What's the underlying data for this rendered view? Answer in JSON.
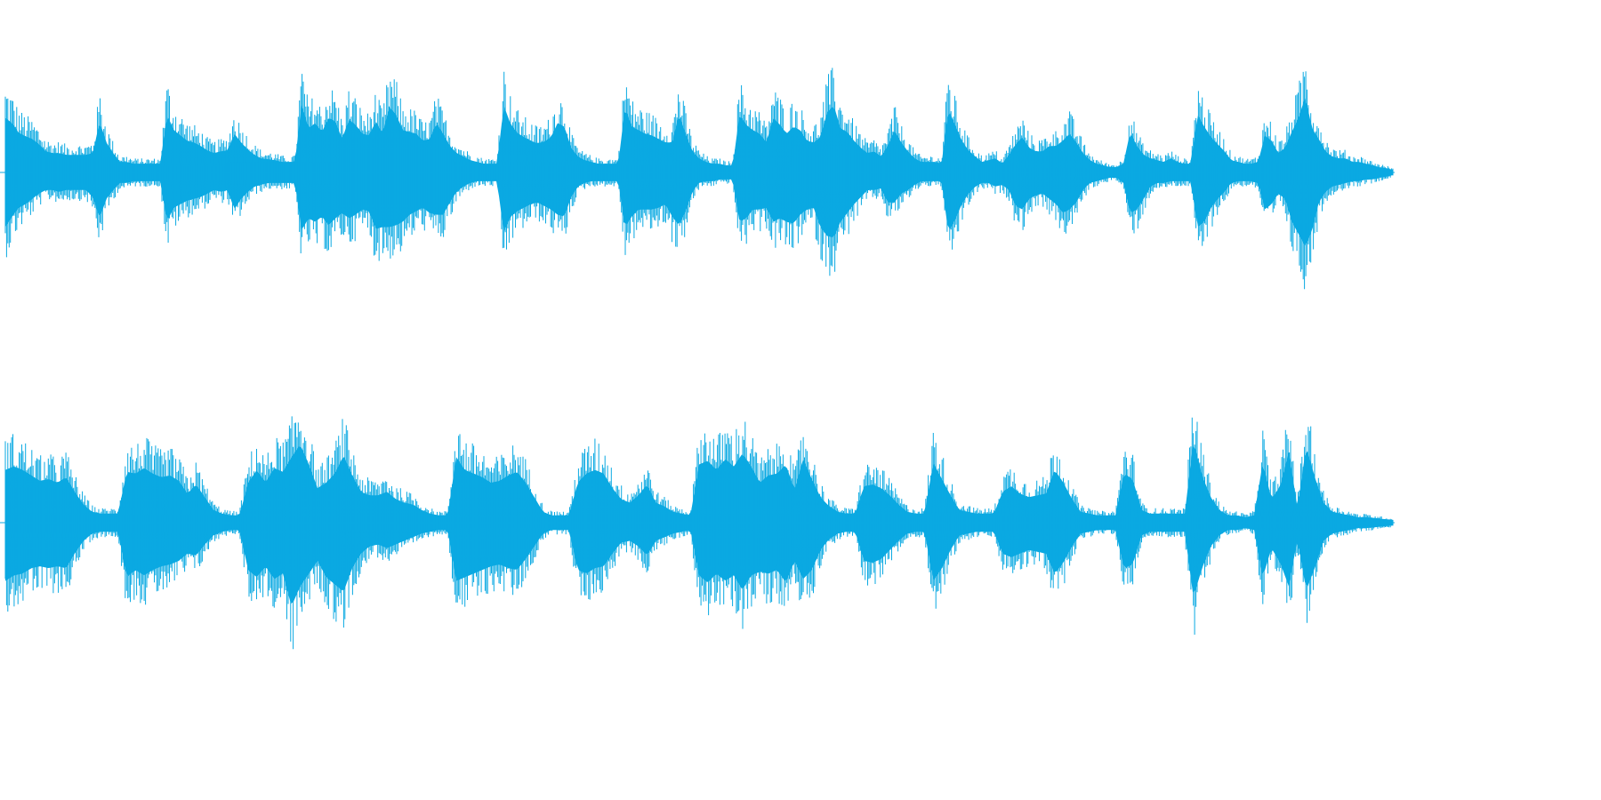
{
  "waveform": {
    "color": "#0aa9e2",
    "background": "#ffffff",
    "channels": [
      {
        "name": "",
        "envelope_top": [
          0.62,
          0.56,
          0.45,
          0.41,
          0.38,
          0.32,
          0.24,
          0.22,
          0.22,
          0.2,
          0.2,
          0.2,
          0.2,
          0.22,
          0.58,
          0.34,
          0.22,
          0.12,
          0.12,
          0.1,
          0.1,
          0.1,
          0.1,
          0.1,
          0.66,
          0.48,
          0.42,
          0.36,
          0.34,
          0.3,
          0.25,
          0.22,
          0.24,
          0.25,
          0.44,
          0.34,
          0.26,
          0.2,
          0.16,
          0.15,
          0.14,
          0.12,
          0.12,
          0.12,
          0.78,
          0.5,
          0.56,
          0.46,
          0.62,
          0.58,
          0.38,
          0.6,
          0.54,
          0.44,
          0.42,
          0.58,
          0.44,
          0.74,
          0.66,
          0.48,
          0.46,
          0.44,
          0.36,
          0.38,
          0.56,
          0.44,
          0.3,
          0.22,
          0.18,
          0.14,
          0.12,
          0.1,
          0.1,
          0.1,
          0.76,
          0.55,
          0.45,
          0.4,
          0.36,
          0.33,
          0.35,
          0.4,
          0.56,
          0.52,
          0.28,
          0.18,
          0.14,
          0.12,
          0.1,
          0.1,
          0.1,
          0.1,
          0.74,
          0.52,
          0.48,
          0.44,
          0.42,
          0.38,
          0.34,
          0.34,
          0.66,
          0.44,
          0.24,
          0.16,
          0.12,
          0.1,
          0.1,
          0.08,
          0.08,
          0.66,
          0.54,
          0.48,
          0.44,
          0.34,
          0.62,
          0.54,
          0.44,
          0.52,
          0.48,
          0.36,
          0.34,
          0.4,
          0.68,
          0.76,
          0.5,
          0.46,
          0.36,
          0.28,
          0.22,
          0.24,
          0.18,
          0.3,
          0.48,
          0.34,
          0.24,
          0.16,
          0.12,
          0.12,
          0.12,
          0.1,
          0.72,
          0.54,
          0.36,
          0.25,
          0.18,
          0.12,
          0.14,
          0.16,
          0.1,
          0.2,
          0.32,
          0.4,
          0.28,
          0.24,
          0.24,
          0.3,
          0.3,
          0.36,
          0.44,
          0.34,
          0.22,
          0.14,
          0.1,
          0.08,
          0.06,
          0.06,
          0.1,
          0.46,
          0.3,
          0.2,
          0.16,
          0.14,
          0.12,
          0.16,
          0.12,
          0.1,
          0.1,
          0.66,
          0.52,
          0.4,
          0.32,
          0.24,
          0.14,
          0.12,
          0.1,
          0.1,
          0.12,
          0.42,
          0.36,
          0.22,
          0.28,
          0.46,
          0.62,
          0.86,
          0.5,
          0.38,
          0.24,
          0.18,
          0.16,
          0.16,
          0.12,
          0.12,
          0.1,
          0.08,
          0.06,
          0.05,
          0.03
        ],
        "envelope_bottom": [
          0.62,
          0.5,
          0.4,
          0.36,
          0.3,
          0.24,
          0.2,
          0.2,
          0.22,
          0.2,
          0.2,
          0.2,
          0.2,
          0.28,
          0.52,
          0.3,
          0.2,
          0.12,
          0.12,
          0.1,
          0.1,
          0.1,
          0.1,
          0.1,
          0.56,
          0.4,
          0.36,
          0.32,
          0.3,
          0.28,
          0.24,
          0.2,
          0.22,
          0.2,
          0.42,
          0.3,
          0.22,
          0.16,
          0.14,
          0.12,
          0.12,
          0.12,
          0.12,
          0.12,
          0.66,
          0.52,
          0.56,
          0.5,
          0.6,
          0.52,
          0.46,
          0.52,
          0.48,
          0.42,
          0.44,
          0.64,
          0.62,
          0.62,
          0.6,
          0.56,
          0.48,
          0.44,
          0.4,
          0.46,
          0.48,
          0.48,
          0.34,
          0.22,
          0.16,
          0.12,
          0.1,
          0.1,
          0.1,
          0.1,
          0.68,
          0.5,
          0.44,
          0.4,
          0.36,
          0.34,
          0.38,
          0.42,
          0.48,
          0.5,
          0.28,
          0.16,
          0.12,
          0.1,
          0.1,
          0.1,
          0.1,
          0.1,
          0.62,
          0.5,
          0.42,
          0.42,
          0.42,
          0.4,
          0.36,
          0.5,
          0.6,
          0.44,
          0.22,
          0.12,
          0.1,
          0.1,
          0.08,
          0.08,
          0.08,
          0.56,
          0.52,
          0.42,
          0.42,
          0.4,
          0.56,
          0.52,
          0.56,
          0.58,
          0.48,
          0.42,
          0.4,
          0.62,
          0.72,
          0.74,
          0.56,
          0.46,
          0.36,
          0.28,
          0.2,
          0.2,
          0.18,
          0.34,
          0.34,
          0.24,
          0.2,
          0.14,
          0.1,
          0.1,
          0.1,
          0.1,
          0.68,
          0.54,
          0.36,
          0.24,
          0.16,
          0.12,
          0.12,
          0.16,
          0.14,
          0.2,
          0.38,
          0.42,
          0.3,
          0.26,
          0.24,
          0.3,
          0.36,
          0.46,
          0.42,
          0.34,
          0.2,
          0.12,
          0.1,
          0.08,
          0.06,
          0.06,
          0.12,
          0.46,
          0.42,
          0.3,
          0.16,
          0.12,
          0.12,
          0.1,
          0.1,
          0.1,
          0.1,
          0.62,
          0.56,
          0.4,
          0.3,
          0.22,
          0.12,
          0.1,
          0.1,
          0.1,
          0.12,
          0.42,
          0.36,
          0.24,
          0.3,
          0.56,
          0.7,
          0.84,
          0.66,
          0.34,
          0.22,
          0.16,
          0.14,
          0.12,
          0.1,
          0.1,
          0.08,
          0.08,
          0.06,
          0.05,
          0.03
        ]
      },
      {
        "name": "",
        "envelope_top": [
          0.58,
          0.62,
          0.58,
          0.52,
          0.46,
          0.48,
          0.44,
          0.5,
          0.34,
          0.2,
          0.12,
          0.1,
          0.1,
          0.1,
          0.56,
          0.54,
          0.6,
          0.54,
          0.5,
          0.52,
          0.46,
          0.32,
          0.42,
          0.28,
          0.14,
          0.1,
          0.08,
          0.08,
          0.44,
          0.58,
          0.44,
          0.6,
          0.56,
          0.72,
          0.86,
          0.64,
          0.38,
          0.44,
          0.54,
          0.74,
          0.52,
          0.34,
          0.3,
          0.3,
          0.34,
          0.26,
          0.22,
          0.2,
          0.14,
          0.1,
          0.08,
          0.08,
          0.72,
          0.58,
          0.54,
          0.5,
          0.44,
          0.46,
          0.52,
          0.56,
          0.44,
          0.28,
          0.12,
          0.08,
          0.08,
          0.08,
          0.44,
          0.54,
          0.58,
          0.54,
          0.38,
          0.26,
          0.22,
          0.3,
          0.42,
          0.22,
          0.18,
          0.12,
          0.1,
          0.08,
          0.64,
          0.68,
          0.58,
          0.7,
          0.62,
          0.76,
          0.62,
          0.44,
          0.52,
          0.54,
          0.64,
          0.36,
          0.7,
          0.48,
          0.28,
          0.18,
          0.12,
          0.1,
          0.1,
          0.4,
          0.42,
          0.38,
          0.3,
          0.2,
          0.12,
          0.1,
          0.1,
          0.66,
          0.48,
          0.3,
          0.14,
          0.12,
          0.1,
          0.1,
          0.1,
          0.34,
          0.4,
          0.32,
          0.28,
          0.3,
          0.32,
          0.58,
          0.44,
          0.26,
          0.12,
          0.1,
          0.08,
          0.08,
          0.08,
          0.54,
          0.48,
          0.14,
          0.1,
          0.1,
          0.1,
          0.1,
          0.1,
          0.9,
          0.52,
          0.28,
          0.14,
          0.08,
          0.08,
          0.06,
          0.08,
          0.66,
          0.26,
          0.4,
          0.78,
          0.16,
          0.84,
          0.5,
          0.22,
          0.12,
          0.1,
          0.08,
          0.06,
          0.06,
          0.05,
          0.04,
          0.03
        ],
        "envelope_bottom": [
          0.64,
          0.58,
          0.56,
          0.5,
          0.48,
          0.5,
          0.48,
          0.5,
          0.34,
          0.2,
          0.12,
          0.1,
          0.1,
          0.1,
          0.6,
          0.52,
          0.58,
          0.52,
          0.48,
          0.46,
          0.42,
          0.34,
          0.36,
          0.24,
          0.14,
          0.1,
          0.08,
          0.08,
          0.52,
          0.6,
          0.48,
          0.62,
          0.56,
          0.92,
          0.7,
          0.56,
          0.42,
          0.6,
          0.68,
          0.76,
          0.5,
          0.34,
          0.26,
          0.24,
          0.28,
          0.24,
          0.2,
          0.16,
          0.12,
          0.1,
          0.08,
          0.08,
          0.64,
          0.6,
          0.56,
          0.52,
          0.48,
          0.46,
          0.5,
          0.52,
          0.4,
          0.26,
          0.12,
          0.08,
          0.08,
          0.08,
          0.52,
          0.56,
          0.5,
          0.48,
          0.34,
          0.22,
          0.2,
          0.26,
          0.36,
          0.2,
          0.16,
          0.12,
          0.1,
          0.08,
          0.58,
          0.66,
          0.56,
          0.64,
          0.58,
          0.74,
          0.58,
          0.54,
          0.56,
          0.52,
          0.66,
          0.42,
          0.62,
          0.52,
          0.3,
          0.18,
          0.12,
          0.1,
          0.1,
          0.42,
          0.44,
          0.4,
          0.3,
          0.2,
          0.12,
          0.1,
          0.1,
          0.64,
          0.5,
          0.3,
          0.14,
          0.12,
          0.1,
          0.1,
          0.1,
          0.34,
          0.38,
          0.34,
          0.3,
          0.32,
          0.34,
          0.56,
          0.44,
          0.26,
          0.12,
          0.1,
          0.08,
          0.08,
          0.08,
          0.5,
          0.46,
          0.14,
          0.1,
          0.1,
          0.1,
          0.1,
          0.1,
          0.82,
          0.5,
          0.26,
          0.14,
          0.08,
          0.08,
          0.06,
          0.08,
          0.6,
          0.28,
          0.44,
          0.7,
          0.18,
          0.74,
          0.5,
          0.2,
          0.12,
          0.1,
          0.08,
          0.06,
          0.06,
          0.05,
          0.04,
          0.03
        ]
      }
    ]
  }
}
